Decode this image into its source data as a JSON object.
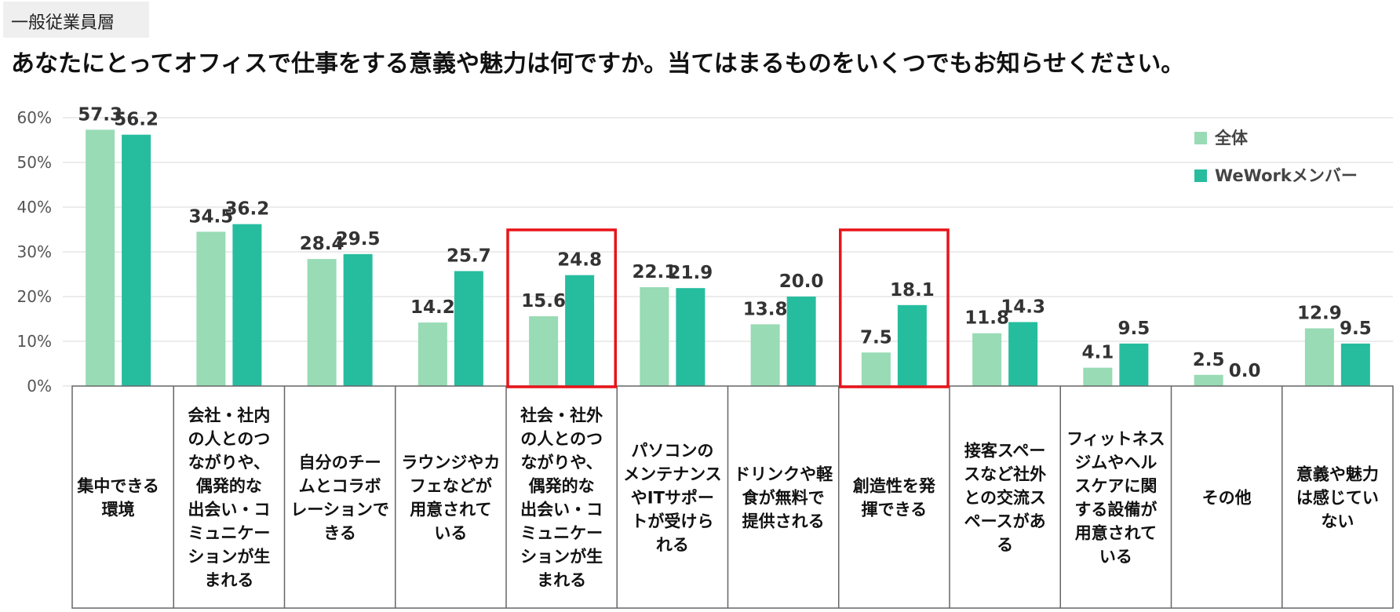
{
  "header": {
    "tag": "一般従業員層",
    "question": "あなたにとってオフィスで仕事をする意義や魅力は何ですか。当てはまるものをいくつでもお知らせください。"
  },
  "colors": {
    "series1": "#98dbb5",
    "series2": "#26bd9f",
    "highlight": "#e8141a",
    "grid": "#d9d9d9",
    "table_border": "#666666"
  },
  "chart_data": {
    "type": "bar",
    "title": "あなたにとってオフィスで仕事をする意義や魅力は何ですか。当てはまるものをいくつでもお知らせください。",
    "ylim": [
      0,
      60
    ],
    "yticks": [
      "0%",
      "10%",
      "20%",
      "30%",
      "40%",
      "50%",
      "60%"
    ],
    "legend_position": "top-right",
    "categories": [
      [
        "集中できる",
        "環境"
      ],
      [
        "会社・社内",
        "の人とのつ",
        "ながりや、",
        "偶発的な",
        "出会い・コ",
        "ミュニケー",
        "ションが生",
        "まれる"
      ],
      [
        "自分のチー",
        "ムとコラボ",
        "レーションで",
        "きる"
      ],
      [
        "ラウンジやカ",
        "フェなどが",
        "用意されて",
        "いる"
      ],
      [
        "社会・社外",
        "の人とのつ",
        "ながりや、",
        "偶発的な",
        "出会い・コ",
        "ミュニケー",
        "ションが生",
        "まれる"
      ],
      [
        "パソコンの",
        "メンテナンス",
        "やITサポー",
        "トが受けら",
        "れる"
      ],
      [
        "ドリンクや軽",
        "食が無料で",
        "提供される"
      ],
      [
        "創造性を発",
        "揮できる"
      ],
      [
        "接客スペー",
        "スなど社外",
        "との交流ス",
        "ペースがあ",
        "る"
      ],
      [
        "フィットネス",
        "ジムやヘル",
        "スケアに関",
        "する設備が",
        "用意されて",
        "いる"
      ],
      [
        "その他"
      ],
      [
        "意義や魅力",
        "は感じてい",
        "ない"
      ]
    ],
    "series": [
      {
        "name": "全体",
        "values": [
          57.3,
          34.5,
          28.4,
          14.2,
          15.6,
          22.1,
          13.8,
          7.5,
          11.8,
          4.1,
          2.5,
          12.9
        ],
        "labels": [
          "57.3",
          "34.5",
          "28.4",
          "14.2",
          "15.6",
          "22.1",
          "13.8",
          "7.5",
          "11.8",
          "4.1",
          "2.5",
          "12.9"
        ]
      },
      {
        "name": "WeWorkメンバー",
        "values": [
          56.2,
          36.2,
          29.5,
          25.7,
          24.8,
          21.9,
          20.0,
          18.1,
          14.3,
          9.5,
          0.0,
          9.5
        ],
        "labels": [
          "56.2",
          "36.2",
          "29.5",
          "25.7",
          "24.8",
          "21.9",
          "20.0",
          "18.1",
          "14.3",
          "9.5",
          "0.0",
          "9.5"
        ]
      }
    ],
    "highlighted_categories": [
      4,
      7
    ]
  }
}
